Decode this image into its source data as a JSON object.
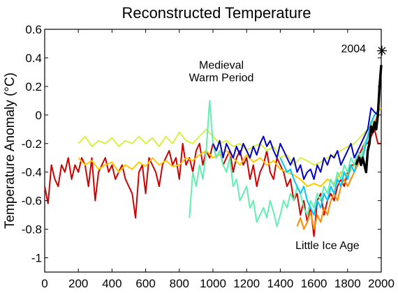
{
  "chart_data": {
    "type": "line",
    "title": "Reconstructed Temperature",
    "xlabel": "",
    "ylabel": "Temperature Anomaly (°C)",
    "xlim": [
      0,
      2000
    ],
    "ylim": [
      -1.1,
      0.6
    ],
    "xticks": [
      0,
      200,
      400,
      600,
      800,
      1000,
      1200,
      1400,
      1600,
      1800,
      2000
    ],
    "yticks": [
      0.6,
      0.4,
      0.2,
      0,
      -0.2,
      -0.4,
      -0.6,
      -0.8,
      -1
    ],
    "ytick_labels": [
      "0.6",
      "0.4",
      "0.2",
      "0",
      "-0.2",
      "-0.4",
      "-0.6",
      "-0.8",
      "-1"
    ],
    "grid": false,
    "annotations": [
      {
        "text": "Medieval",
        "x": 1050,
        "y": 0.325
      },
      {
        "text": "Warm Period",
        "x": 1050,
        "y": 0.235
      },
      {
        "text": "Little Ice Age",
        "x": 1680,
        "y": -0.94
      },
      {
        "text": "2004",
        "x": 1835,
        "y": 0.44
      }
    ],
    "marker": {
      "x": 2004,
      "y": 0.45,
      "symbol": "asterisk"
    },
    "series": [
      {
        "color": "#d00000",
        "width": 2,
        "x": [
          0,
          20,
          40,
          60,
          80,
          100,
          120,
          140,
          160,
          180,
          200,
          220,
          240,
          260,
          280,
          300,
          320,
          340,
          360,
          380,
          400,
          420,
          440,
          460,
          480,
          500,
          520,
          540,
          560,
          580,
          600,
          620,
          640,
          660,
          680,
          700,
          720,
          740,
          760,
          780,
          800,
          820,
          840,
          860,
          880,
          900,
          920,
          940,
          960,
          980,
          1000,
          1020,
          1040,
          1060,
          1080,
          1100,
          1120,
          1140,
          1160,
          1180,
          1200,
          1220,
          1240,
          1260,
          1280,
          1300,
          1320,
          1340,
          1360,
          1380,
          1400,
          1420,
          1440,
          1460,
          1480,
          1500,
          1520,
          1540,
          1560,
          1580,
          1600,
          1620,
          1640,
          1660,
          1680,
          1700,
          1720,
          1740,
          1760,
          1780,
          1800,
          1820,
          1840,
          1860,
          1880,
          1900,
          1920,
          1940,
          1960,
          1980,
          2000
        ],
        "y": [
          -0.5,
          -0.62,
          -0.35,
          -0.45,
          -0.5,
          -0.35,
          -0.4,
          -0.3,
          -0.45,
          -0.35,
          -0.4,
          -0.3,
          -0.35,
          -0.5,
          -0.3,
          -0.6,
          -0.4,
          -0.35,
          -0.3,
          -0.4,
          -0.35,
          -0.45,
          -0.4,
          -0.35,
          -0.45,
          -0.5,
          -0.55,
          -0.72,
          -0.4,
          -0.35,
          -0.55,
          -0.3,
          -0.35,
          -0.4,
          -0.5,
          -0.35,
          -0.3,
          -0.25,
          -0.35,
          -0.3,
          -0.45,
          -0.2,
          -0.35,
          -0.3,
          -0.4,
          -0.25,
          -0.2,
          -0.35,
          -0.25,
          -0.3,
          -0.2,
          -0.3,
          -0.25,
          -0.35,
          -0.3,
          -0.25,
          -0.4,
          -0.3,
          -0.25,
          -0.35,
          -0.3,
          -0.45,
          -0.35,
          -0.5,
          -0.4,
          -0.35,
          -0.25,
          -0.4,
          -0.45,
          -0.3,
          -0.35,
          -0.4,
          -0.5,
          -0.45,
          -0.6,
          -0.55,
          -0.7,
          -0.6,
          -0.75,
          -0.65,
          -0.85,
          -0.6,
          -0.55,
          -0.7,
          -0.6,
          -0.55,
          -0.6,
          -0.5,
          -0.45,
          -0.5,
          -0.4,
          -0.35,
          -0.35,
          -0.3,
          -0.25,
          -0.2,
          -0.2,
          -0.15,
          -0.1,
          -0.2,
          -0.2
        ]
      },
      {
        "color": "#ff8c00",
        "width": 2,
        "x": [
          1500,
          1520,
          1540,
          1560,
          1580,
          1600,
          1620,
          1640,
          1660,
          1680,
          1700,
          1720,
          1740,
          1760,
          1780,
          1800,
          1820,
          1840,
          1860,
          1880,
          1900,
          1920,
          1940,
          1960,
          1980
        ],
        "y": [
          -0.78,
          -0.72,
          -0.8,
          -0.75,
          -0.68,
          -0.8,
          -0.7,
          -0.75,
          -0.65,
          -0.7,
          -0.6,
          -0.55,
          -0.6,
          -0.5,
          -0.45,
          -0.5,
          -0.45,
          -0.4,
          -0.35,
          -0.3,
          -0.25,
          -0.15,
          -0.1,
          -0.05,
          0.0
        ]
      },
      {
        "color": "#ffc800",
        "width": 2,
        "x": [
          200,
          240,
          280,
          320,
          360,
          400,
          440,
          480,
          520,
          560,
          600,
          640,
          680,
          720,
          760,
          800,
          840,
          880,
          920,
          960,
          1000,
          1040,
          1080,
          1120,
          1160,
          1200,
          1240,
          1280,
          1320,
          1360,
          1400,
          1440,
          1480,
          1520,
          1560,
          1600,
          1640,
          1680,
          1720,
          1760,
          1800,
          1840,
          1880,
          1920,
          1960,
          2000
        ],
        "y": [
          -0.3,
          -0.35,
          -0.32,
          -0.38,
          -0.35,
          -0.33,
          -0.4,
          -0.35,
          -0.38,
          -0.33,
          -0.36,
          -0.3,
          -0.35,
          -0.32,
          -0.36,
          -0.35,
          -0.3,
          -0.32,
          -0.28,
          -0.25,
          -0.3,
          -0.28,
          -0.25,
          -0.3,
          -0.35,
          -0.28,
          -0.33,
          -0.3,
          -0.35,
          -0.32,
          -0.38,
          -0.4,
          -0.42,
          -0.45,
          -0.5,
          -0.48,
          -0.5,
          -0.45,
          -0.48,
          -0.4,
          -0.42,
          -0.35,
          -0.3,
          -0.15,
          0.0,
          0.05
        ]
      },
      {
        "color": "#d8f040",
        "width": 2,
        "x": [
          200,
          240,
          280,
          320,
          360,
          400,
          440,
          480,
          520,
          560,
          600,
          640,
          680,
          720,
          760,
          800,
          840,
          880,
          920,
          960,
          1000,
          1040,
          1080,
          1120,
          1160,
          1200,
          1240,
          1280,
          1320,
          1360,
          1400,
          1440,
          1480,
          1520,
          1560,
          1600,
          1640,
          1680,
          1720,
          1760,
          1800,
          1840,
          1880,
          1920,
          1960
        ],
        "y": [
          -0.2,
          -0.15,
          -0.22,
          -0.18,
          -0.2,
          -0.16,
          -0.22,
          -0.18,
          -0.2,
          -0.15,
          -0.2,
          -0.16,
          -0.22,
          -0.15,
          -0.2,
          -0.12,
          -0.18,
          -0.2,
          -0.15,
          -0.1,
          -0.15,
          -0.2,
          -0.18,
          -0.22,
          -0.2,
          -0.25,
          -0.22,
          -0.2,
          -0.25,
          -0.22,
          -0.3,
          -0.28,
          -0.35,
          -0.3,
          -0.32,
          -0.35,
          -0.33,
          -0.3,
          -0.28,
          -0.25,
          -0.22,
          -0.2,
          -0.15,
          -0.1,
          -0.05
        ]
      },
      {
        "color": "#60f0b0",
        "width": 2,
        "x": [
          860,
          880,
          900,
          920,
          940,
          960,
          980,
          1000,
          1020,
          1040,
          1060,
          1080,
          1100,
          1120,
          1140,
          1160,
          1180,
          1200,
          1220,
          1240,
          1260,
          1280,
          1300,
          1320,
          1340,
          1360,
          1380,
          1400,
          1420,
          1440,
          1460,
          1480,
          1500,
          1520,
          1540,
          1560,
          1580,
          1600,
          1620,
          1640,
          1660,
          1680,
          1700,
          1720,
          1740,
          1760,
          1780,
          1800,
          1820,
          1840,
          1860,
          1880,
          1900,
          1920,
          1940,
          1960,
          1980
        ],
        "y": [
          -0.72,
          -0.4,
          -0.5,
          -0.35,
          -0.45,
          -0.25,
          0.1,
          -0.2,
          -0.3,
          -0.25,
          -0.35,
          -0.4,
          -0.3,
          -0.5,
          -0.45,
          -0.6,
          -0.55,
          -0.5,
          -0.65,
          -0.6,
          -0.75,
          -0.7,
          -0.65,
          -0.72,
          -0.6,
          -0.68,
          -0.78,
          -0.7,
          -0.6,
          -0.65,
          -0.55,
          -0.6,
          -0.5,
          -0.55,
          -0.65,
          -0.7,
          -0.6,
          -0.65,
          -0.55,
          -0.6,
          -0.5,
          -0.55,
          -0.45,
          -0.5,
          -0.4,
          -0.45,
          -0.35,
          -0.4,
          -0.3,
          -0.35,
          -0.25,
          -0.3,
          -0.2,
          -0.15,
          -0.05,
          0.0,
          0.02
        ]
      },
      {
        "color": "#00c8ff",
        "width": 2,
        "x": [
          1400,
          1420,
          1440,
          1460,
          1480,
          1500,
          1520,
          1540,
          1560,
          1580,
          1600,
          1620,
          1640,
          1660,
          1680,
          1700,
          1720,
          1740,
          1760,
          1780,
          1800,
          1820,
          1840,
          1860,
          1880,
          1900,
          1920,
          1940,
          1960,
          1980
        ],
        "y": [
          -0.3,
          -0.35,
          -0.4,
          -0.38,
          -0.45,
          -0.5,
          -0.55,
          -0.5,
          -0.6,
          -0.65,
          -0.7,
          -0.6,
          -0.65,
          -0.55,
          -0.6,
          -0.5,
          -0.55,
          -0.45,
          -0.5,
          -0.4,
          -0.45,
          -0.35,
          -0.4,
          -0.3,
          -0.35,
          -0.25,
          -0.15,
          -0.05,
          0.0,
          0.03
        ]
      },
      {
        "color": "#0000c8",
        "width": 2,
        "x": [
          1000,
          1020,
          1040,
          1060,
          1080,
          1100,
          1120,
          1140,
          1160,
          1180,
          1200,
          1220,
          1240,
          1260,
          1280,
          1300,
          1320,
          1340,
          1360,
          1380,
          1400,
          1420,
          1440,
          1460,
          1480,
          1500,
          1520,
          1540,
          1560,
          1580,
          1600,
          1620,
          1640,
          1660,
          1680,
          1700,
          1720,
          1740,
          1760,
          1780,
          1800,
          1820,
          1840,
          1860,
          1880,
          1900,
          1920,
          1940,
          1960,
          1980
        ],
        "y": [
          -0.2,
          -0.25,
          -0.18,
          -0.3,
          -0.2,
          -0.25,
          -0.3,
          -0.22,
          -0.28,
          -0.2,
          -0.25,
          -0.3,
          -0.22,
          -0.28,
          -0.2,
          -0.15,
          -0.22,
          -0.18,
          -0.25,
          -0.3,
          -0.2,
          -0.25,
          -0.3,
          -0.35,
          -0.3,
          -0.4,
          -0.35,
          -0.45,
          -0.4,
          -0.38,
          -0.45,
          -0.35,
          -0.4,
          -0.3,
          -0.35,
          -0.28,
          -0.3,
          -0.25,
          -0.35,
          -0.3,
          -0.25,
          -0.2,
          -0.3,
          -0.25,
          -0.2,
          -0.15,
          -0.1,
          0.05,
          0.02,
          0.0
        ]
      },
      {
        "color": "#000000",
        "width": 3.5,
        "x": [
          1850,
          1860,
          1870,
          1880,
          1890,
          1900,
          1910,
          1920,
          1930,
          1940,
          1950,
          1960,
          1970,
          1980,
          1990,
          2000
        ],
        "y": [
          -0.35,
          -0.32,
          -0.3,
          -0.35,
          -0.3,
          -0.35,
          -0.4,
          -0.25,
          -0.2,
          -0.08,
          -0.12,
          -0.05,
          -0.1,
          0.0,
          0.2,
          0.35
        ]
      }
    ]
  }
}
